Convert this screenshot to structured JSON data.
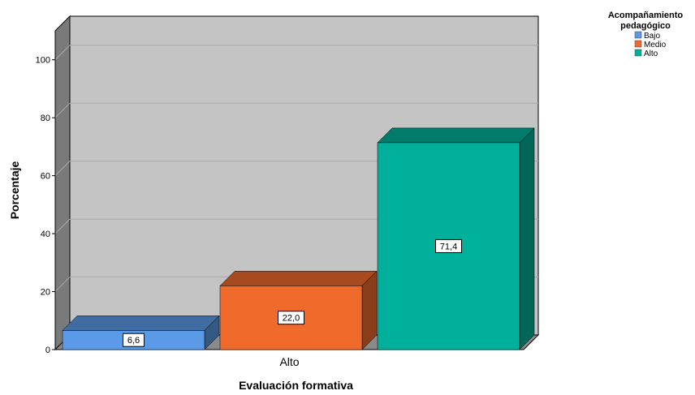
{
  "chart_data": {
    "type": "bar",
    "style": "3d-clustered",
    "categories": [
      "Alto"
    ],
    "series": [
      {
        "name": "Bajo",
        "values": [
          6.6
        ],
        "color": "#5b9ae6"
      },
      {
        "name": "Medio",
        "values": [
          22.0
        ],
        "color": "#f06a2c"
      },
      {
        "name": "Alto",
        "values": [
          71.4
        ],
        "color": "#00b09a"
      }
    ],
    "data_labels": [
      "6,6",
      "22,0",
      "71,4"
    ],
    "xlabel": "Evaluación formativa",
    "ylabel": "Porcentaje",
    "ylim": [
      0,
      110
    ],
    "yticks": [
      0,
      20,
      40,
      60,
      80,
      100
    ],
    "grid": true,
    "legend": {
      "title_line1": "Acompañamiento",
      "title_line2": "pedagógico",
      "position": "top-right"
    },
    "colors": {
      "plot_back": "#c4c4c4",
      "side_wall": "#7a7a7a",
      "floor": "#8a8a8a",
      "gridline": "#a8a8a8"
    }
  }
}
